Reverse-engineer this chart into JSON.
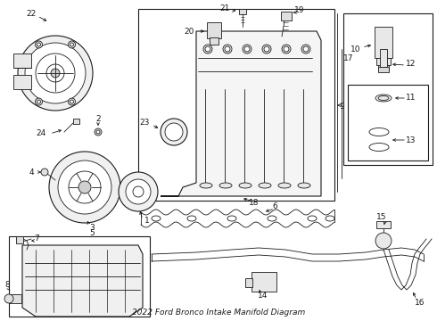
{
  "title": "2022 Ford Bronco Intake Manifold Diagram",
  "bg_color": "#ffffff",
  "line_color": "#1a1a1a",
  "fig_width": 4.9,
  "fig_height": 3.6,
  "dpi": 100
}
